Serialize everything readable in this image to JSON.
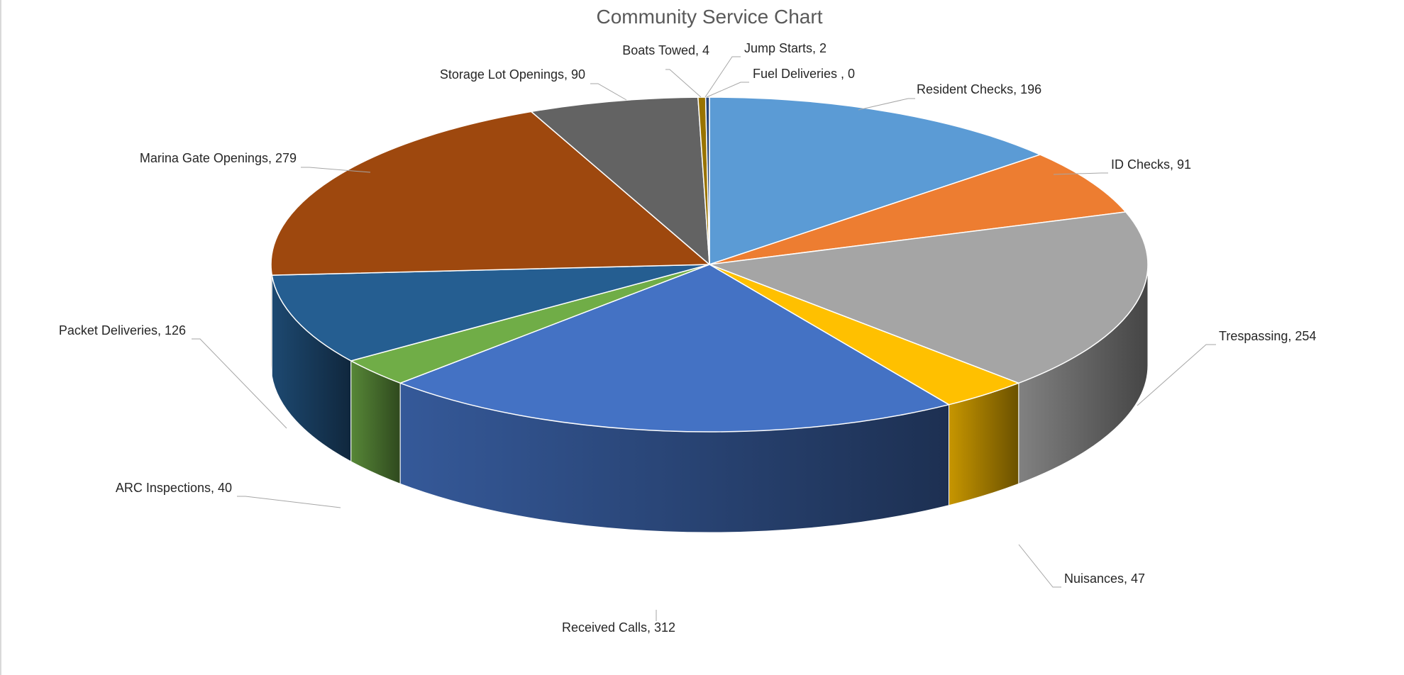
{
  "chart_data": {
    "type": "pie",
    "title": "Community Service Chart",
    "three_d": true,
    "slices": [
      {
        "label": "Resident Checks, 196",
        "name": "Resident Checks",
        "value": 196,
        "color": "#5b9bd5"
      },
      {
        "label": "ID Checks, 91",
        "name": "ID Checks",
        "value": 91,
        "color": "#ed7d31"
      },
      {
        "label": "Trespassing, 254",
        "name": "Trespassing",
        "value": 254,
        "color": "#a5a5a5"
      },
      {
        "label": "Nuisances, 47",
        "name": "Nuisances",
        "value": 47,
        "color": "#ffc000"
      },
      {
        "label": "Received Calls, 312",
        "name": "Received Calls",
        "value": 312,
        "color": "#4472c4"
      },
      {
        "label": "ARC Inspections, 40",
        "name": "ARC Inspections",
        "value": 40,
        "color": "#70ad47"
      },
      {
        "label": "Packet Deliveries, 126",
        "name": "Packet Deliveries",
        "value": 126,
        "color": "#255e91"
      },
      {
        "label": "Marina Gate Openings, 279",
        "name": "Marina Gate Openings",
        "value": 279,
        "color": "#9e480e"
      },
      {
        "label": "Storage Lot Openings, 90",
        "name": "Storage Lot Openings",
        "value": 90,
        "color": "#636363"
      },
      {
        "label": "Boats Towed, 4",
        "name": "Boats Towed",
        "value": 4,
        "color": "#997300"
      },
      {
        "label": "Jump Starts, 2",
        "name": "Jump Starts",
        "value": 2,
        "color": "#264478"
      },
      {
        "label": "Fuel Deliveries , 0",
        "name": "Fuel Deliveries ",
        "value": 0,
        "color": "#43682b"
      }
    ]
  }
}
